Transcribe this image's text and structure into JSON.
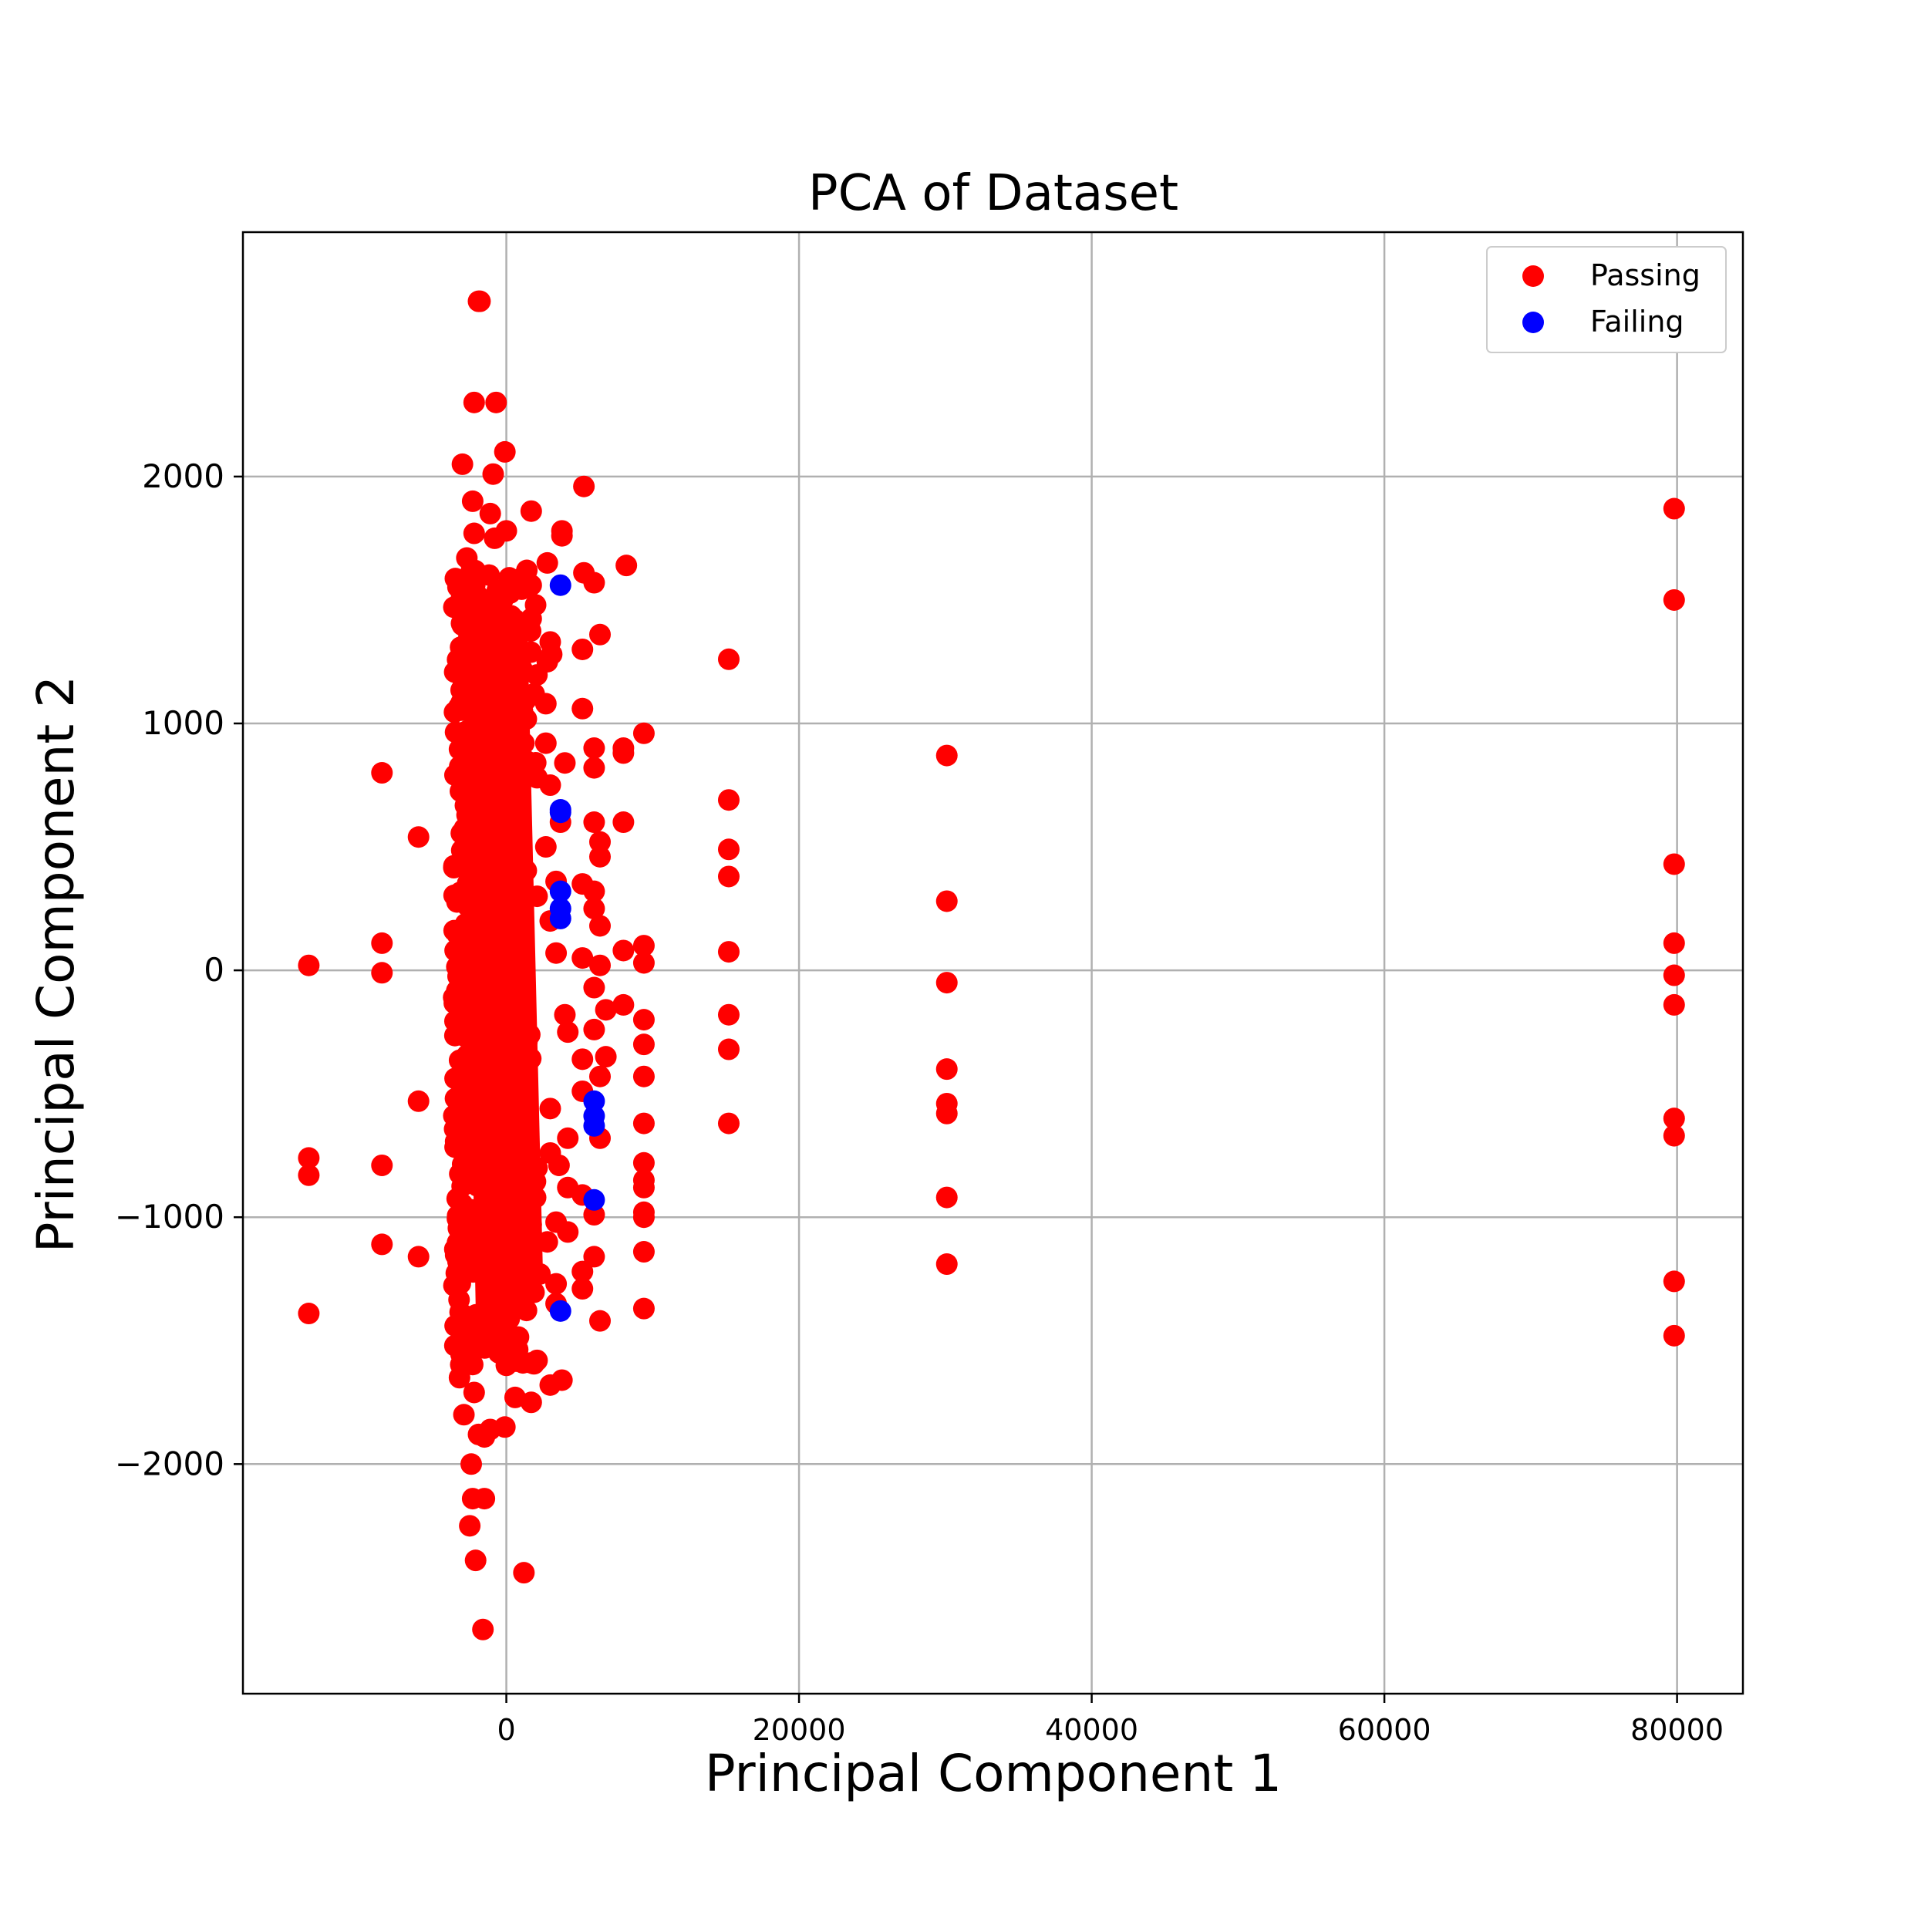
{
  "chart_data": {
    "type": "scatter",
    "title": "PCA of Dataset",
    "xlabel": "Principal Component 1",
    "ylabel": "Principal Component 2",
    "xlim": [
      -18000,
      84500
    ],
    "ylim": [
      -2930,
      2990
    ],
    "xticks": [
      0,
      20000,
      40000,
      60000,
      80000
    ],
    "xtick_labels": [
      "0",
      "20000",
      "40000",
      "60000",
      "80000"
    ],
    "yticks": [
      -2000,
      -1000,
      0,
      1000,
      2000
    ],
    "ytick_labels": [
      "−2000",
      "−1000",
      "0",
      "1000",
      "2000"
    ],
    "grid": true,
    "legend": {
      "placement": "top-right",
      "entries": [
        "Passing",
        "Failing"
      ]
    },
    "series": [
      {
        "name": "Passing",
        "color": "#ff0000",
        "points": [
          [
            -1800,
            2710
          ],
          [
            -1900,
            2710
          ],
          [
            -2200,
            2300
          ],
          [
            -700,
            2300
          ],
          [
            -3000,
            2050
          ],
          [
            -100,
            2100
          ],
          [
            -900,
            2010
          ],
          [
            -2300,
            1900
          ],
          [
            -1100,
            1850
          ],
          [
            1700,
            1860
          ],
          [
            5300,
            1960
          ],
          [
            -2200,
            1770
          ],
          [
            -800,
            1750
          ],
          [
            0,
            1780
          ],
          [
            3800,
            1780
          ],
          [
            3800,
            1760
          ],
          [
            -2700,
            1670
          ],
          [
            8200,
            1640
          ],
          [
            1400,
            1620
          ],
          [
            2800,
            1650
          ],
          [
            5300,
            1610
          ],
          [
            6000,
            1570
          ],
          [
            -2600,
            1590
          ],
          [
            200,
            1590
          ],
          [
            1700,
            1560
          ],
          [
            2000,
            1480
          ],
          [
            -2000,
            1510
          ],
          [
            600,
            1420
          ],
          [
            -900,
            1460
          ],
          [
            6400,
            1360
          ],
          [
            3000,
            1330
          ],
          [
            5200,
            1300
          ],
          [
            1000,
            1270
          ],
          [
            2800,
            1250
          ],
          [
            3100,
            1280
          ],
          [
            15200,
            1260
          ],
          [
            -1700,
            1210
          ],
          [
            1900,
            1120
          ],
          [
            300,
            1200
          ],
          [
            -2900,
            1080
          ],
          [
            -1200,
            1110
          ],
          [
            1100,
            1050
          ],
          [
            5200,
            1060
          ],
          [
            2700,
            1080
          ],
          [
            -3300,
            960
          ],
          [
            1200,
            920
          ],
          [
            2700,
            920
          ],
          [
            9400,
            960
          ],
          [
            8000,
            880
          ],
          [
            8000,
            900
          ],
          [
            6000,
            900
          ],
          [
            4000,
            840
          ],
          [
            6000,
            820
          ],
          [
            30100,
            870
          ],
          [
            -8500,
            800
          ],
          [
            2100,
            780
          ],
          [
            3000,
            750
          ],
          [
            -6000,
            540
          ],
          [
            15200,
            690
          ],
          [
            8000,
            600
          ],
          [
            6000,
            600
          ],
          [
            3700,
            600
          ],
          [
            2700,
            500
          ],
          [
            15200,
            490
          ],
          [
            6400,
            460
          ],
          [
            15200,
            380
          ],
          [
            6400,
            520
          ],
          [
            3400,
            360
          ],
          [
            5200,
            350
          ],
          [
            6000,
            320
          ],
          [
            2100,
            300
          ],
          [
            30100,
            280
          ],
          [
            1000,
            260
          ],
          [
            6000,
            250
          ],
          [
            6400,
            180
          ],
          [
            3000,
            200
          ],
          [
            15200,
            75
          ],
          [
            9400,
            100
          ],
          [
            8000,
            80
          ],
          [
            9400,
            30
          ],
          [
            6400,
            20
          ],
          [
            -8500,
            110
          ],
          [
            -13500,
            20
          ],
          [
            -8500,
            -10
          ],
          [
            5200,
            50
          ],
          [
            3400,
            70
          ],
          [
            800,
            100
          ],
          [
            -3500,
            80
          ],
          [
            30100,
            -50
          ],
          [
            79800,
            1870
          ],
          [
            79800,
            1500
          ],
          [
            79800,
            430
          ],
          [
            79800,
            110
          ],
          [
            79800,
            -20
          ],
          [
            79800,
            -140
          ],
          [
            6000,
            -70
          ],
          [
            8000,
            -140
          ],
          [
            9400,
            -200
          ],
          [
            6800,
            -160
          ],
          [
            4000,
            -180
          ],
          [
            15200,
            -180
          ],
          [
            15200,
            -320
          ],
          [
            9400,
            -300
          ],
          [
            6000,
            -240
          ],
          [
            4200,
            -250
          ],
          [
            6800,
            -350
          ],
          [
            9400,
            -430
          ],
          [
            5200,
            -360
          ],
          [
            -6000,
            -530
          ],
          [
            -3400,
            -520
          ],
          [
            30100,
            -400
          ],
          [
            30100,
            -540
          ],
          [
            30100,
            -580
          ],
          [
            15200,
            -620
          ],
          [
            9400,
            -620
          ],
          [
            3000,
            -560
          ],
          [
            6400,
            -430
          ],
          [
            5200,
            -490
          ],
          [
            79800,
            -600
          ],
          [
            79800,
            -670
          ],
          [
            6400,
            -680
          ],
          [
            4200,
            -680
          ],
          [
            -8500,
            -790
          ],
          [
            -13500,
            -760
          ],
          [
            -13500,
            -830
          ],
          [
            9400,
            -780
          ],
          [
            9400,
            -850
          ],
          [
            9400,
            -880
          ],
          [
            3600,
            -790
          ],
          [
            2100,
            -800
          ],
          [
            3000,
            -740
          ],
          [
            5200,
            -910
          ],
          [
            4200,
            -880
          ],
          [
            2000,
            -920
          ],
          [
            30100,
            -920
          ],
          [
            9400,
            -980
          ],
          [
            9400,
            -1000
          ],
          [
            6000,
            -990
          ],
          [
            3400,
            -1020
          ],
          [
            4200,
            -1060
          ],
          [
            1700,
            -1030
          ],
          [
            2800,
            -1100
          ],
          [
            600,
            -1060
          ],
          [
            -8500,
            -1110
          ],
          [
            -6000,
            -1160
          ],
          [
            9400,
            -1140
          ],
          [
            6000,
            -1160
          ],
          [
            5200,
            -1220
          ],
          [
            2300,
            -1230
          ],
          [
            30100,
            -1190
          ],
          [
            79800,
            -1260
          ],
          [
            3400,
            -1270
          ],
          [
            5200,
            -1290
          ],
          [
            1000,
            -1300
          ],
          [
            -600,
            -1270
          ],
          [
            -13500,
            -1390
          ],
          [
            9400,
            -1370
          ],
          [
            6400,
            -1420
          ],
          [
            3400,
            -1350
          ],
          [
            79800,
            -1480
          ],
          [
            -3500,
            -1440
          ],
          [
            -1200,
            -1470
          ],
          [
            -2700,
            -1510
          ],
          [
            0,
            -1600
          ],
          [
            1700,
            -1590
          ],
          [
            2100,
            -1580
          ],
          [
            3000,
            -1680
          ],
          [
            3800,
            -1660
          ],
          [
            -3200,
            -1650
          ],
          [
            1700,
            -1750
          ],
          [
            600,
            -1730
          ],
          [
            -2200,
            -1710
          ],
          [
            -2900,
            -1800
          ],
          [
            -1900,
            -1880
          ],
          [
            -1500,
            -1890
          ],
          [
            -1100,
            -1860
          ],
          [
            -100,
            -1850
          ],
          [
            -2400,
            -2000
          ],
          [
            -2300,
            -2140
          ],
          [
            -1500,
            -2140
          ],
          [
            -2500,
            -2250
          ],
          [
            -2100,
            -2390
          ],
          [
            1200,
            -2440
          ],
          [
            -1600,
            -2670
          ]
        ]
      },
      {
        "name": "Failing",
        "color": "#0000ff",
        "points": [
          [
            3700,
            1560
          ],
          [
            3700,
            650
          ],
          [
            3700,
            640
          ],
          [
            3700,
            320
          ],
          [
            3700,
            250
          ],
          [
            3700,
            210
          ],
          [
            6000,
            -530
          ],
          [
            6000,
            -590
          ],
          [
            6000,
            -630
          ],
          [
            6000,
            -930
          ],
          [
            3700,
            -1380
          ]
        ]
      }
    ],
    "dense_band": {
      "x_range": [
        -3600,
        2500
      ],
      "y_range": [
        -1600,
        1650
      ]
    }
  }
}
